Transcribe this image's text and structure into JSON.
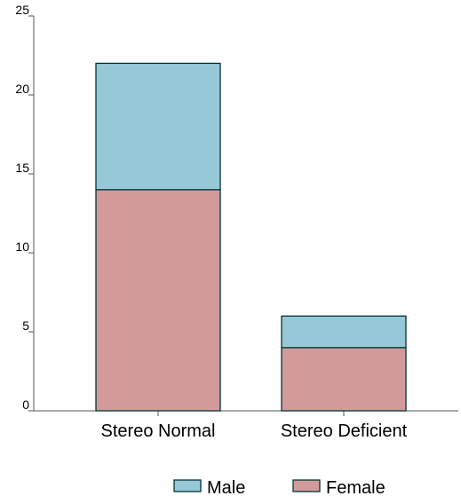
{
  "chart_data": {
    "type": "bar",
    "stacked": true,
    "categories": [
      "Stereo Normal",
      "Stereo Deficient"
    ],
    "series": [
      {
        "name": "Female",
        "values": [
          14,
          4
        ],
        "color": "#d39a9c"
      },
      {
        "name": "Male",
        "values": [
          8,
          2
        ],
        "color": "#97c8d8"
      }
    ],
    "yticks": [
      "0",
      "5",
      "10",
      "15",
      "20",
      "25"
    ],
    "ylim": [
      0,
      25
    ],
    "grid": false,
    "legend_position": "bottom",
    "legend_order": [
      "Male",
      "Female"
    ],
    "outline_color": "#003535"
  }
}
